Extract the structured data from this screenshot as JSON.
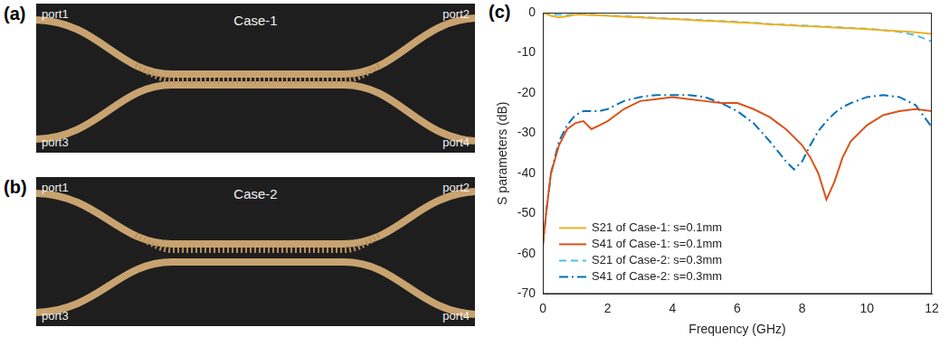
{
  "photos": [
    {
      "label": "(a)",
      "title": "Case-1",
      "ports": [
        "port1",
        "port2",
        "port3",
        "port4"
      ]
    },
    {
      "label": "(b)",
      "title": "Case-2",
      "ports": [
        "port1",
        "port2",
        "port3",
        "port4"
      ]
    }
  ],
  "chart_data": {
    "type": "line",
    "label": "(c)",
    "x_label": "Frequency (GHz)",
    "y_label": "S parameters (dB)",
    "x": [
      0,
      0.1,
      0.25,
      0.5,
      0.75,
      1,
      1.25,
      1.5,
      1.75,
      2,
      2.5,
      3,
      3.5,
      4,
      4.5,
      5,
      5.5,
      6,
      6.5,
      7,
      7.25,
      7.5,
      7.75,
      8,
      8.25,
      8.5,
      8.75,
      9,
      9.25,
      9.5,
      10,
      10.5,
      11,
      11.5,
      12
    ],
    "series": [
      {
        "name": "S21 of Case-1: s=0.1mm",
        "color": "#EDB120",
        "line_style": "solid",
        "values": [
          -0.2,
          -0.3,
          -0.8,
          -1.2,
          -0.9,
          -0.5,
          -0.5,
          -0.6,
          -0.7,
          -0.8,
          -1.0,
          -1.2,
          -1.4,
          -1.6,
          -1.8,
          -2.0,
          -2.2,
          -2.4,
          -2.6,
          -2.9,
          -3.0,
          -3.1,
          -3.2,
          -3.3,
          -3.4,
          -3.5,
          -3.6,
          -3.7,
          -3.8,
          -3.9,
          -4.1,
          -4.4,
          -4.6,
          -4.9,
          -5.3
        ]
      },
      {
        "name": "S41 of Case-1: s=0.1mm",
        "color": "#D95319",
        "line_style": "solid",
        "values": [
          -58,
          -50,
          -40,
          -33,
          -29,
          -27.5,
          -27,
          -29,
          -28,
          -27,
          -24,
          -22,
          -21.5,
          -21,
          -21.5,
          -22,
          -22.5,
          -22.5,
          -24,
          -26,
          -27.5,
          -29,
          -31,
          -33,
          -36,
          -40,
          -46.5,
          -42,
          -36,
          -32,
          -28,
          -25.5,
          -24.5,
          -24,
          -24.5
        ]
      },
      {
        "name": "S21 of Case-2: s=0.3mm",
        "color": "#4DBEEE",
        "line_style": "dashed",
        "values": [
          -0.1,
          -0.2,
          -0.4,
          -0.5,
          -0.6,
          -0.4,
          -0.4,
          -0.5,
          -0.6,
          -0.7,
          -0.9,
          -1.1,
          -1.3,
          -1.5,
          -1.7,
          -1.9,
          -2.1,
          -2.3,
          -2.5,
          -2.8,
          -2.9,
          -3.0,
          -3.1,
          -3.2,
          -3.3,
          -3.4,
          -3.5,
          -3.6,
          -3.7,
          -3.8,
          -4.0,
          -4.3,
          -4.8,
          -5.6,
          -7.2
        ]
      },
      {
        "name": "S41 of Case-2: s=0.3mm",
        "color": "#0072BD",
        "line_style": "dashdot",
        "values": [
          -58,
          -50,
          -40,
          -32,
          -28,
          -25.5,
          -24.5,
          -24.5,
          -24.5,
          -24,
          -22,
          -21,
          -20.5,
          -20.5,
          -20.5,
          -21,
          -22.5,
          -24.5,
          -27.5,
          -32,
          -34.5,
          -37,
          -39,
          -37,
          -33,
          -29.5,
          -27,
          -25,
          -23.5,
          -22.5,
          -21,
          -20.5,
          -21,
          -23,
          -28.5
        ]
      }
    ],
    "xlim": [
      0,
      12
    ],
    "xticks": [
      0,
      2,
      4,
      6,
      8,
      10,
      12
    ],
    "ylim": [
      -70,
      0
    ],
    "yticks": [
      -70,
      -60,
      -50,
      -40,
      -30,
      -20,
      -10,
      0
    ],
    "grid": false,
    "legend": "lower left"
  }
}
